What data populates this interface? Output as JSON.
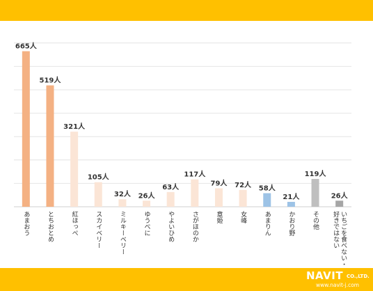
{
  "colors": {
    "band": "#FFC000",
    "grid": "#e4e4e4",
    "axis": "#cfcfcf",
    "text": "#333333"
  },
  "brand": {
    "logo_text": "NAVIT",
    "logo_suffix": "CO.,LTD.",
    "url": "www.navit-j.com"
  },
  "chart_data": {
    "type": "bar",
    "categories": [
      "あまおう",
      "とちおとめ",
      "紅ほっぺ",
      "スカイベリー",
      "ミルキーベリー",
      "ゆうべに",
      "やよいひめ",
      "さがほのか",
      "章姫",
      "女峰",
      "あまりん",
      "かおり野",
      "その他",
      "いちごを食べない・好きではない"
    ],
    "values": [
      665,
      519,
      321,
      105,
      32,
      26,
      63,
      117,
      79,
      72,
      58,
      21,
      119,
      26
    ],
    "data_labels": [
      "665人",
      "519人",
      "321人",
      "105人",
      "32人",
      "26人",
      "63人",
      "117人",
      "79人",
      "72人",
      "58人",
      "21人",
      "119人",
      "26人"
    ],
    "bar_colors": [
      "#F4B183",
      "#F4B183",
      "#FBE5D6",
      "#FBE5D6",
      "#FBE5D6",
      "#FBE5D6",
      "#FBE5D6",
      "#FBE5D6",
      "#FBE5D6",
      "#FBE5D6",
      "#9DC3E6",
      "#9DC3E6",
      "#BFBFBF",
      "#A6A6A6"
    ],
    "ylim": [
      0,
      750
    ],
    "grid": true,
    "gridlines": [
      0,
      100,
      200,
      300,
      400,
      500,
      600,
      700
    ]
  }
}
